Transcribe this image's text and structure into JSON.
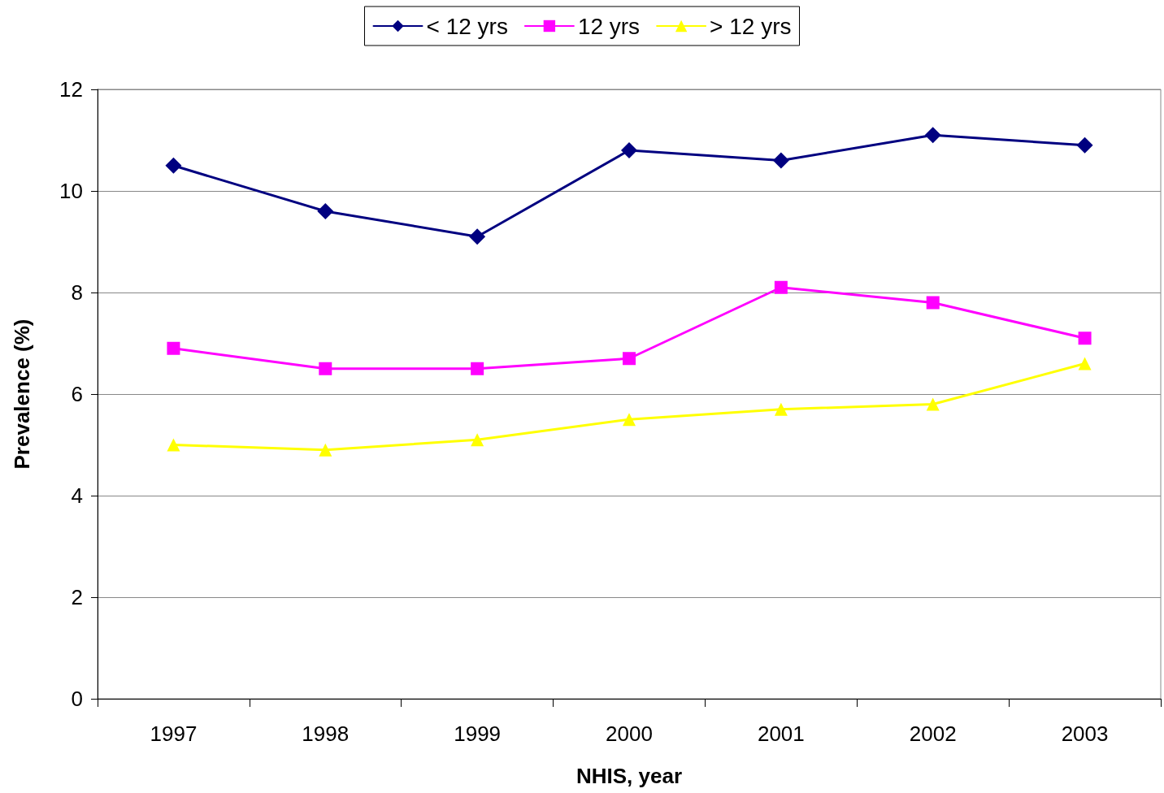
{
  "chart_data": {
    "type": "line",
    "xlabel": "NHIS, year",
    "ylabel": "Prevalence (%)",
    "categories": [
      "1997",
      "1998",
      "1999",
      "2000",
      "2001",
      "2002",
      "2003"
    ],
    "series": [
      {
        "name": "< 12 yrs",
        "color": "#000080",
        "marker": "diamond",
        "values": [
          10.5,
          9.6,
          9.1,
          10.8,
          10.6,
          11.1,
          10.9
        ]
      },
      {
        "name": "12 yrs",
        "color": "#ff00ff",
        "marker": "square",
        "values": [
          6.9,
          6.5,
          6.5,
          6.7,
          8.1,
          7.8,
          7.1
        ]
      },
      {
        "name": "> 12 yrs",
        "color": "#ffff00",
        "marker": "triangle",
        "values": [
          5.0,
          4.9,
          5.1,
          5.5,
          5.7,
          5.8,
          6.6
        ]
      }
    ],
    "ylim": [
      0,
      12
    ],
    "yticks": [
      0,
      2,
      4,
      6,
      8,
      10,
      12
    ],
    "grid": "y",
    "legend": "top",
    "line_style": "solid"
  }
}
